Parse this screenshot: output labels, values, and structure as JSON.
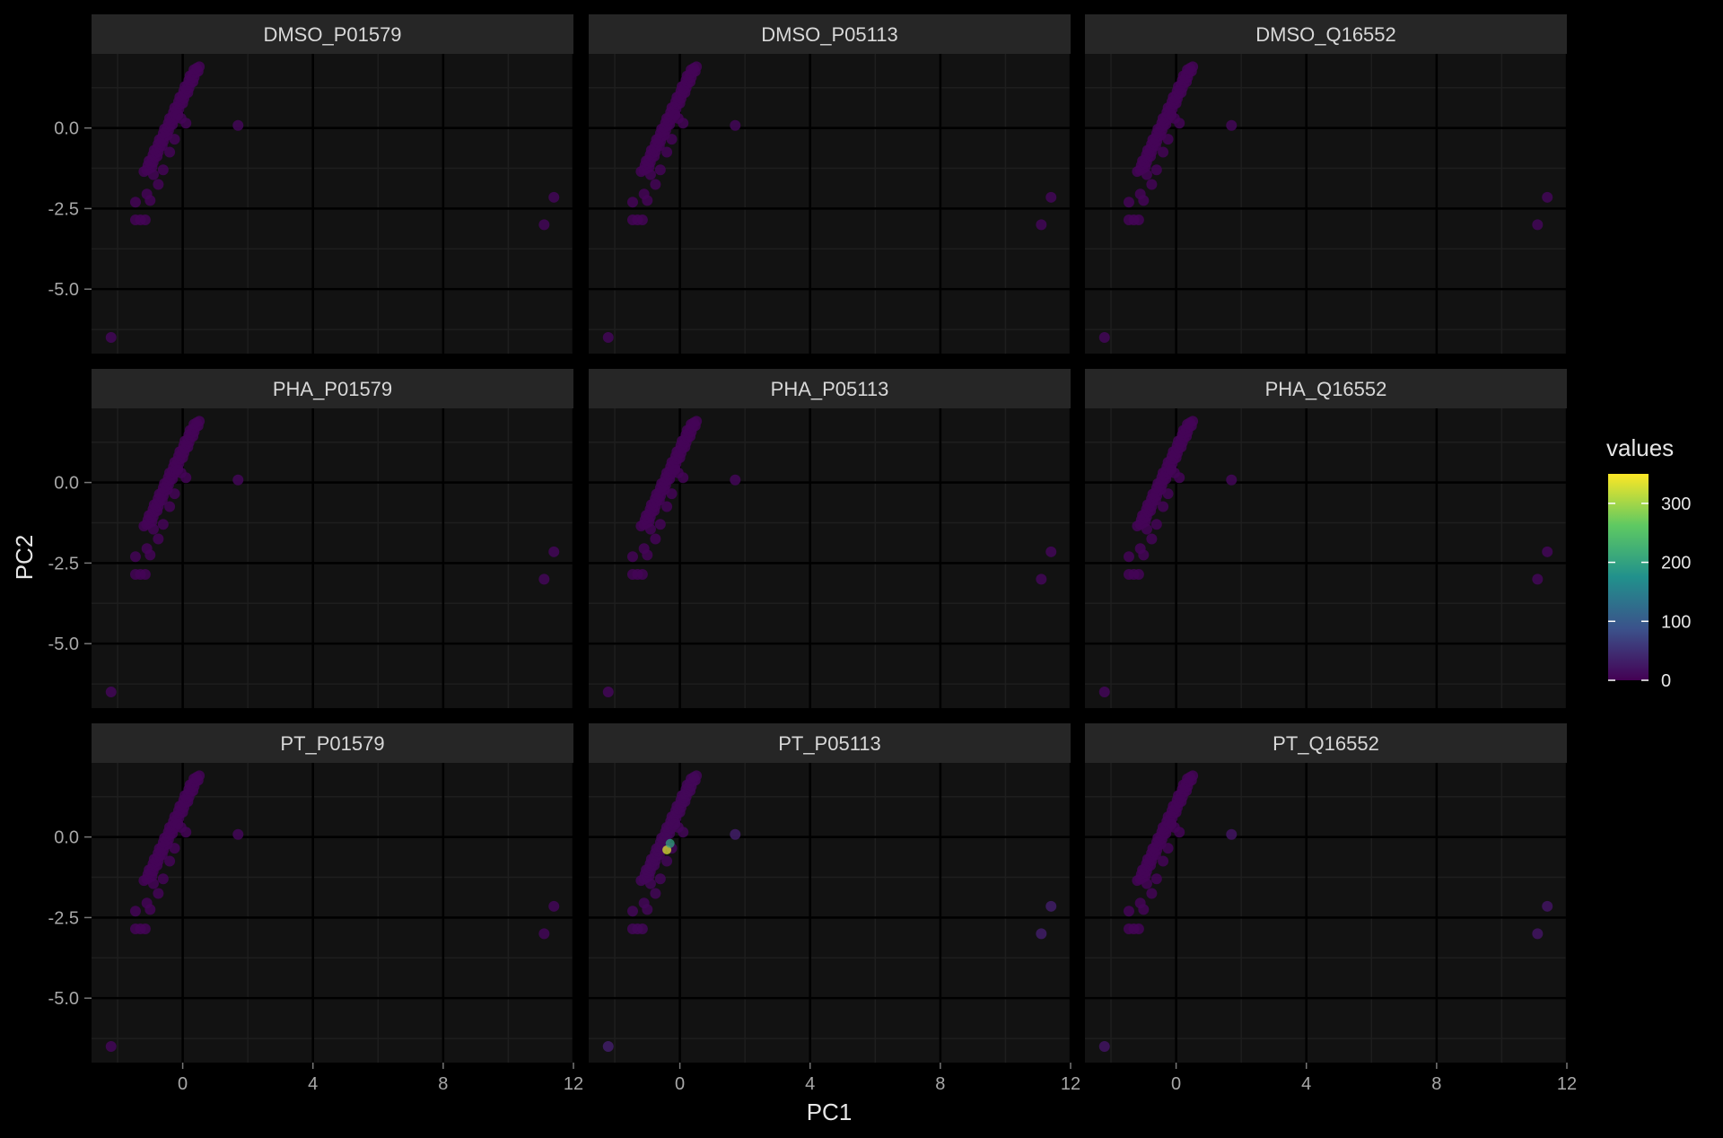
{
  "chart_data": {
    "type": "scatter",
    "facet_layout": "3x3 grid",
    "xlabel": "PC1",
    "ylabel": "PC2",
    "xlim": [
      -2.8,
      12
    ],
    "ylim": [
      -7.0,
      2.3
    ],
    "x_ticks": [
      0,
      4,
      8,
      12
    ],
    "x_tick_labels": [
      "0",
      "4",
      "8",
      "12"
    ],
    "x_minor_gridlines": [
      -2,
      2,
      6,
      10
    ],
    "y_ticks": [
      0.0,
      -2.5,
      -5.0
    ],
    "y_tick_labels": [
      "0.0",
      "-2.5",
      "-5.0"
    ],
    "y_minor_gridlines": [
      1.25,
      -1.25,
      -3.75,
      -6.25
    ],
    "grid": true,
    "background": "#000000",
    "panel_color": "#121212",
    "strip_color": "#262626",
    "grid_major_color": "#000000",
    "grid_minor_color": "#1e1e1e",
    "legend": {
      "title": "values",
      "placement": "right",
      "type": "colorbar",
      "colormap": "viridis",
      "min": 0,
      "max": 350,
      "ticks": [
        0,
        100,
        200,
        300
      ],
      "tick_labels": [
        "0",
        "100",
        "200",
        "300"
      ]
    },
    "facets": [
      {
        "label": "DMSO_P01579",
        "point_values": {
          "main": 4,
          "outlier": 6
        }
      },
      {
        "label": "DMSO_P05113",
        "point_values": {
          "main": 4,
          "outlier": 6
        }
      },
      {
        "label": "DMSO_Q16552",
        "point_values": {
          "main": 4,
          "outlier": 6
        }
      },
      {
        "label": "PHA_P01579",
        "point_values": {
          "main": 4,
          "outlier": 6
        }
      },
      {
        "label": "PHA_P05113",
        "point_values": {
          "main": 4,
          "outlier": 6
        }
      },
      {
        "label": "PHA_Q16552",
        "point_values": {
          "main": 4,
          "outlier": 6
        }
      },
      {
        "label": "PT_P01579",
        "point_values": {
          "main": 4,
          "outlier": 6
        }
      },
      {
        "label": "PT_P05113",
        "point_values": {
          "main": 6,
          "outlier": 30
        },
        "highlight": [
          {
            "x": -0.4,
            "y": -0.4,
            "value": 330
          },
          {
            "x": -0.3,
            "y": -0.2,
            "value": 200
          }
        ]
      },
      {
        "label": "PT_Q16552",
        "point_values": {
          "main": 4,
          "outlier": 20
        }
      }
    ],
    "points": {
      "main_trend": {
        "x_start": -1.1,
        "y_start": -1.35,
        "x_end": 0.45,
        "y_end": 1.9,
        "count": 70
      },
      "extra": [
        {
          "x": -1.45,
          "y": -2.3
        },
        {
          "x": -1.0,
          "y": -2.25
        },
        {
          "x": -1.1,
          "y": -2.05
        },
        {
          "x": -0.75,
          "y": -1.75
        },
        {
          "x": -0.9,
          "y": -1.45
        },
        {
          "x": -0.6,
          "y": -1.3
        },
        {
          "x": -1.45,
          "y": -2.85
        },
        {
          "x": -1.3,
          "y": -2.85
        },
        {
          "x": -1.15,
          "y": -2.85
        },
        {
          "x": -0.15,
          "y": 0.4
        },
        {
          "x": -0.05,
          "y": 0.3
        },
        {
          "x": 0.1,
          "y": 0.15
        },
        {
          "x": -0.25,
          "y": -0.35
        },
        {
          "x": -0.4,
          "y": -0.75
        }
      ],
      "outliers": [
        {
          "x": 1.7,
          "y": 0.08
        },
        {
          "x": 11.1,
          "y": -3.0
        },
        {
          "x": 11.4,
          "y": -2.15
        },
        {
          "x": -2.2,
          "y": -6.5
        }
      ]
    }
  }
}
